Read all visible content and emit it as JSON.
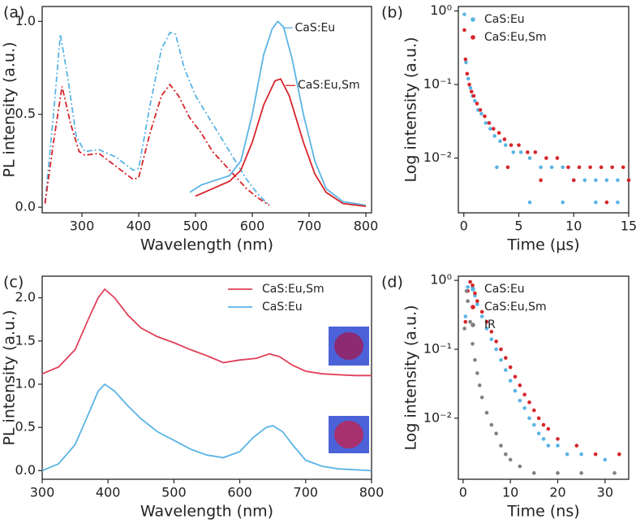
{
  "chart_data": [
    {
      "type": "line",
      "panel_label": "(a)",
      "x_label": "Wavelength (nm)",
      "y_label": "PL intensity (a.u.)",
      "xlim": [
        230,
        810
      ],
      "xticks": [
        300,
        400,
        500,
        600,
        700,
        800
      ],
      "ylim": [
        -0.03,
        1.08
      ],
      "yticks": [
        {
          "value": 0,
          "label": "0.0"
        },
        0.5,
        {
          "value": 1,
          "label": "1.0"
        }
      ],
      "legend": "inline",
      "series": [
        {
          "color": "#5ab4e5",
          "linestyle": "dashdot",
          "x": [
            235,
            250,
            262,
            275,
            290,
            305,
            330,
            360,
            390,
            400,
            420,
            440,
            455,
            465,
            480,
            500,
            530,
            560,
            590,
            610,
            630
          ],
          "values": [
            0.02,
            0.5,
            0.93,
            0.7,
            0.38,
            0.3,
            0.31,
            0.27,
            0.2,
            0.21,
            0.55,
            0.85,
            0.94,
            0.93,
            0.75,
            0.6,
            0.45,
            0.3,
            0.15,
            0.07,
            0.01
          ]
        },
        {
          "color": "#d6252a",
          "linestyle": "dashdot",
          "x": [
            235,
            250,
            265,
            280,
            295,
            305,
            330,
            360,
            390,
            400,
            420,
            440,
            455,
            470,
            490,
            510,
            530,
            560,
            590,
            610,
            630
          ],
          "values": [
            0.02,
            0.35,
            0.65,
            0.45,
            0.3,
            0.28,
            0.29,
            0.22,
            0.15,
            0.16,
            0.4,
            0.6,
            0.66,
            0.6,
            0.48,
            0.4,
            0.3,
            0.2,
            0.1,
            0.05,
            0.01
          ]
        },
        {
          "name": "CaS:Eu",
          "color": "#5ab4e5",
          "linestyle": "solid",
          "x": [
            490,
            510,
            540,
            560,
            580,
            600,
            620,
            635,
            645,
            655,
            670,
            690,
            710,
            730,
            760,
            800
          ],
          "values": [
            0.08,
            0.12,
            0.15,
            0.17,
            0.25,
            0.5,
            0.82,
            0.96,
            1.0,
            0.97,
            0.8,
            0.5,
            0.25,
            0.1,
            0.03,
            0.01
          ]
        },
        {
          "name": "CaS:Eu,Sm",
          "color": "#d6252a",
          "linestyle": "solid",
          "x": [
            500,
            530,
            560,
            580,
            600,
            620,
            640,
            650,
            665,
            690,
            710,
            730,
            760,
            800
          ],
          "values": [
            0.06,
            0.1,
            0.14,
            0.2,
            0.35,
            0.55,
            0.68,
            0.69,
            0.6,
            0.35,
            0.18,
            0.08,
            0.02,
            0.005
          ]
        }
      ]
    },
    {
      "type": "scatter",
      "panel_label": "(b)",
      "x_label": "Time (μs)",
      "y_label": "Log intensity (a.u.)",
      "xlim": [
        -0.5,
        15
      ],
      "xticks": [
        0,
        5,
        10,
        15
      ],
      "ylim": [
        0.0018,
        1.15
      ],
      "ylog": true,
      "yticks": [
        {
          "value": 0.01,
          "label": "10⁻²"
        },
        {
          "value": 0.1,
          "label": "10⁻¹"
        },
        {
          "value": 1,
          "label": "10⁰"
        }
      ],
      "legend": "top-left",
      "series": [
        {
          "name": "CaS:Eu",
          "color": "#5ab4e5",
          "x": [
            0.05,
            0.2,
            0.4,
            0.6,
            0.8,
            1.0,
            1.3,
            1.6,
            2.0,
            2.4,
            2.8,
            3.3,
            3.8,
            4.5,
            5.2,
            6,
            7,
            8,
            9,
            10,
            11,
            12,
            13,
            14,
            15,
            3,
            6,
            9,
            12,
            14
          ],
          "values": [
            0.9,
            0.2,
            0.12,
            0.09,
            0.07,
            0.06,
            0.045,
            0.04,
            0.03,
            0.025,
            0.02,
            0.017,
            0.015,
            0.012,
            0.012,
            0.01,
            0.0075,
            0.0075,
            0.0075,
            0.005,
            0.005,
            0.005,
            0.005,
            0.005,
            0.005,
            0.0075,
            0.0025,
            0.0025,
            0.0025,
            0.0025
          ]
        },
        {
          "name": "CaS:Eu,Sm",
          "color": "#d6252a",
          "x": [
            0.05,
            0.15,
            0.3,
            0.5,
            0.7,
            0.9,
            1.2,
            1.5,
            1.9,
            2.3,
            2.7,
            3.2,
            3.7,
            4.3,
            5,
            5.8,
            6.5,
            7.5,
            8.5,
            9.5,
            10.5,
            11.5,
            12.5,
            13.5,
            14.5,
            4,
            7,
            10,
            13,
            15
          ],
          "values": [
            0.55,
            0.22,
            0.14,
            0.1,
            0.08,
            0.07,
            0.055,
            0.045,
            0.037,
            0.03,
            0.025,
            0.022,
            0.018,
            0.015,
            0.015,
            0.012,
            0.012,
            0.01,
            0.01,
            0.0075,
            0.0075,
            0.0075,
            0.0075,
            0.0075,
            0.0075,
            0.0075,
            0.005,
            0.005,
            0.0025,
            0.005
          ]
        }
      ]
    },
    {
      "type": "line",
      "panel_label": "(c)",
      "x_label": "Wavelength (nm)",
      "y_label": "PL intensity (a.u.)",
      "xlim": [
        300,
        800
      ],
      "xticks": [
        300,
        400,
        500,
        600,
        700,
        800
      ],
      "ylim": [
        -0.1,
        2.25
      ],
      "yticks": [
        {
          "value": 0,
          "label": "0.0"
        },
        0.5,
        {
          "value": 1,
          "label": "1.0"
        },
        1.5,
        {
          "value": 2,
          "label": "2.0"
        }
      ],
      "legend": "top-right",
      "series": [
        {
          "name": "CaS:Eu,Sm",
          "color": "#e0405a",
          "linestyle": "solid",
          "x": [
            300,
            325,
            350,
            370,
            385,
            395,
            410,
            430,
            450,
            475,
            500,
            525,
            550,
            575,
            600,
            625,
            645,
            660,
            680,
            700,
            725,
            750,
            775,
            800
          ],
          "values": [
            1.12,
            1.2,
            1.4,
            1.75,
            2.0,
            2.1,
            2.0,
            1.8,
            1.65,
            1.55,
            1.48,
            1.4,
            1.33,
            1.25,
            1.28,
            1.3,
            1.35,
            1.32,
            1.22,
            1.15,
            1.12,
            1.11,
            1.1,
            1.1
          ]
        },
        {
          "name": "CaS:Eu",
          "color": "#5ab4e5",
          "linestyle": "solid",
          "x": [
            300,
            325,
            350,
            370,
            385,
            395,
            410,
            430,
            450,
            475,
            500,
            525,
            550,
            575,
            600,
            620,
            640,
            650,
            665,
            680,
            700,
            725,
            750,
            775,
            800
          ],
          "values": [
            0.0,
            0.08,
            0.3,
            0.65,
            0.92,
            1.0,
            0.92,
            0.75,
            0.6,
            0.45,
            0.35,
            0.25,
            0.18,
            0.15,
            0.22,
            0.38,
            0.5,
            0.52,
            0.45,
            0.3,
            0.12,
            0.05,
            0.02,
            0.01,
            0.0
          ]
        }
      ]
    },
    {
      "type": "scatter",
      "panel_label": "(d)",
      "x_label": "Time (ns)",
      "y_label": "Log intensity (a.u.)",
      "xlim": [
        -1,
        35
      ],
      "xticks": [
        0,
        10,
        20,
        30
      ],
      "ylim": [
        0.0013,
        1.15
      ],
      "ylog": true,
      "yticks": [
        {
          "value": 0.01,
          "label": "10⁻²"
        },
        {
          "value": 0.1,
          "label": "10⁻¹"
        },
        {
          "value": 1,
          "label": "10⁰"
        }
      ],
      "legend": "top-left",
      "series": [
        {
          "name": "CaS:Eu",
          "color": "#5ab4e5",
          "x": [
            0.5,
            1,
            1.5,
            2,
            2.5,
            3,
            4,
            5,
            6,
            7,
            8,
            9,
            10,
            11,
            12,
            13,
            14,
            15,
            16,
            17,
            18,
            20,
            22,
            25,
            30
          ],
          "values": [
            0.3,
            0.8,
            0.95,
            0.8,
            0.6,
            0.45,
            0.3,
            0.2,
            0.14,
            0.1,
            0.07,
            0.05,
            0.035,
            0.025,
            0.018,
            0.014,
            0.01,
            0.008,
            0.006,
            0.005,
            0.004,
            0.004,
            0.003,
            0.003,
            0.0025
          ]
        },
        {
          "name": "CaS:Eu,Sm",
          "color": "#d6252a",
          "x": [
            0.5,
            1,
            1.5,
            2,
            2.5,
            3,
            4,
            5,
            6,
            7,
            8,
            9,
            10,
            11,
            12,
            13,
            14,
            15,
            16,
            17,
            18,
            20,
            24,
            28,
            33
          ],
          "values": [
            0.25,
            0.7,
            0.95,
            0.85,
            0.65,
            0.5,
            0.35,
            0.25,
            0.18,
            0.13,
            0.1,
            0.075,
            0.055,
            0.04,
            0.03,
            0.022,
            0.017,
            0.013,
            0.01,
            0.008,
            0.007,
            0.005,
            0.004,
            0.003,
            0.003
          ]
        },
        {
          "name": "IR",
          "color": "#808080",
          "x": [
            0.3,
            0.7,
            1,
            1.5,
            2,
            2.5,
            3,
            3.5,
            4,
            5,
            6,
            7,
            8,
            9,
            10,
            12,
            15,
            20,
            25,
            32
          ],
          "values": [
            0.2,
            0.7,
            0.5,
            0.25,
            0.12,
            0.07,
            0.045,
            0.03,
            0.02,
            0.012,
            0.008,
            0.006,
            0.004,
            0.003,
            0.0025,
            0.002,
            0.0016,
            0.0016,
            0.0016,
            0.0016
          ]
        }
      ]
    }
  ]
}
